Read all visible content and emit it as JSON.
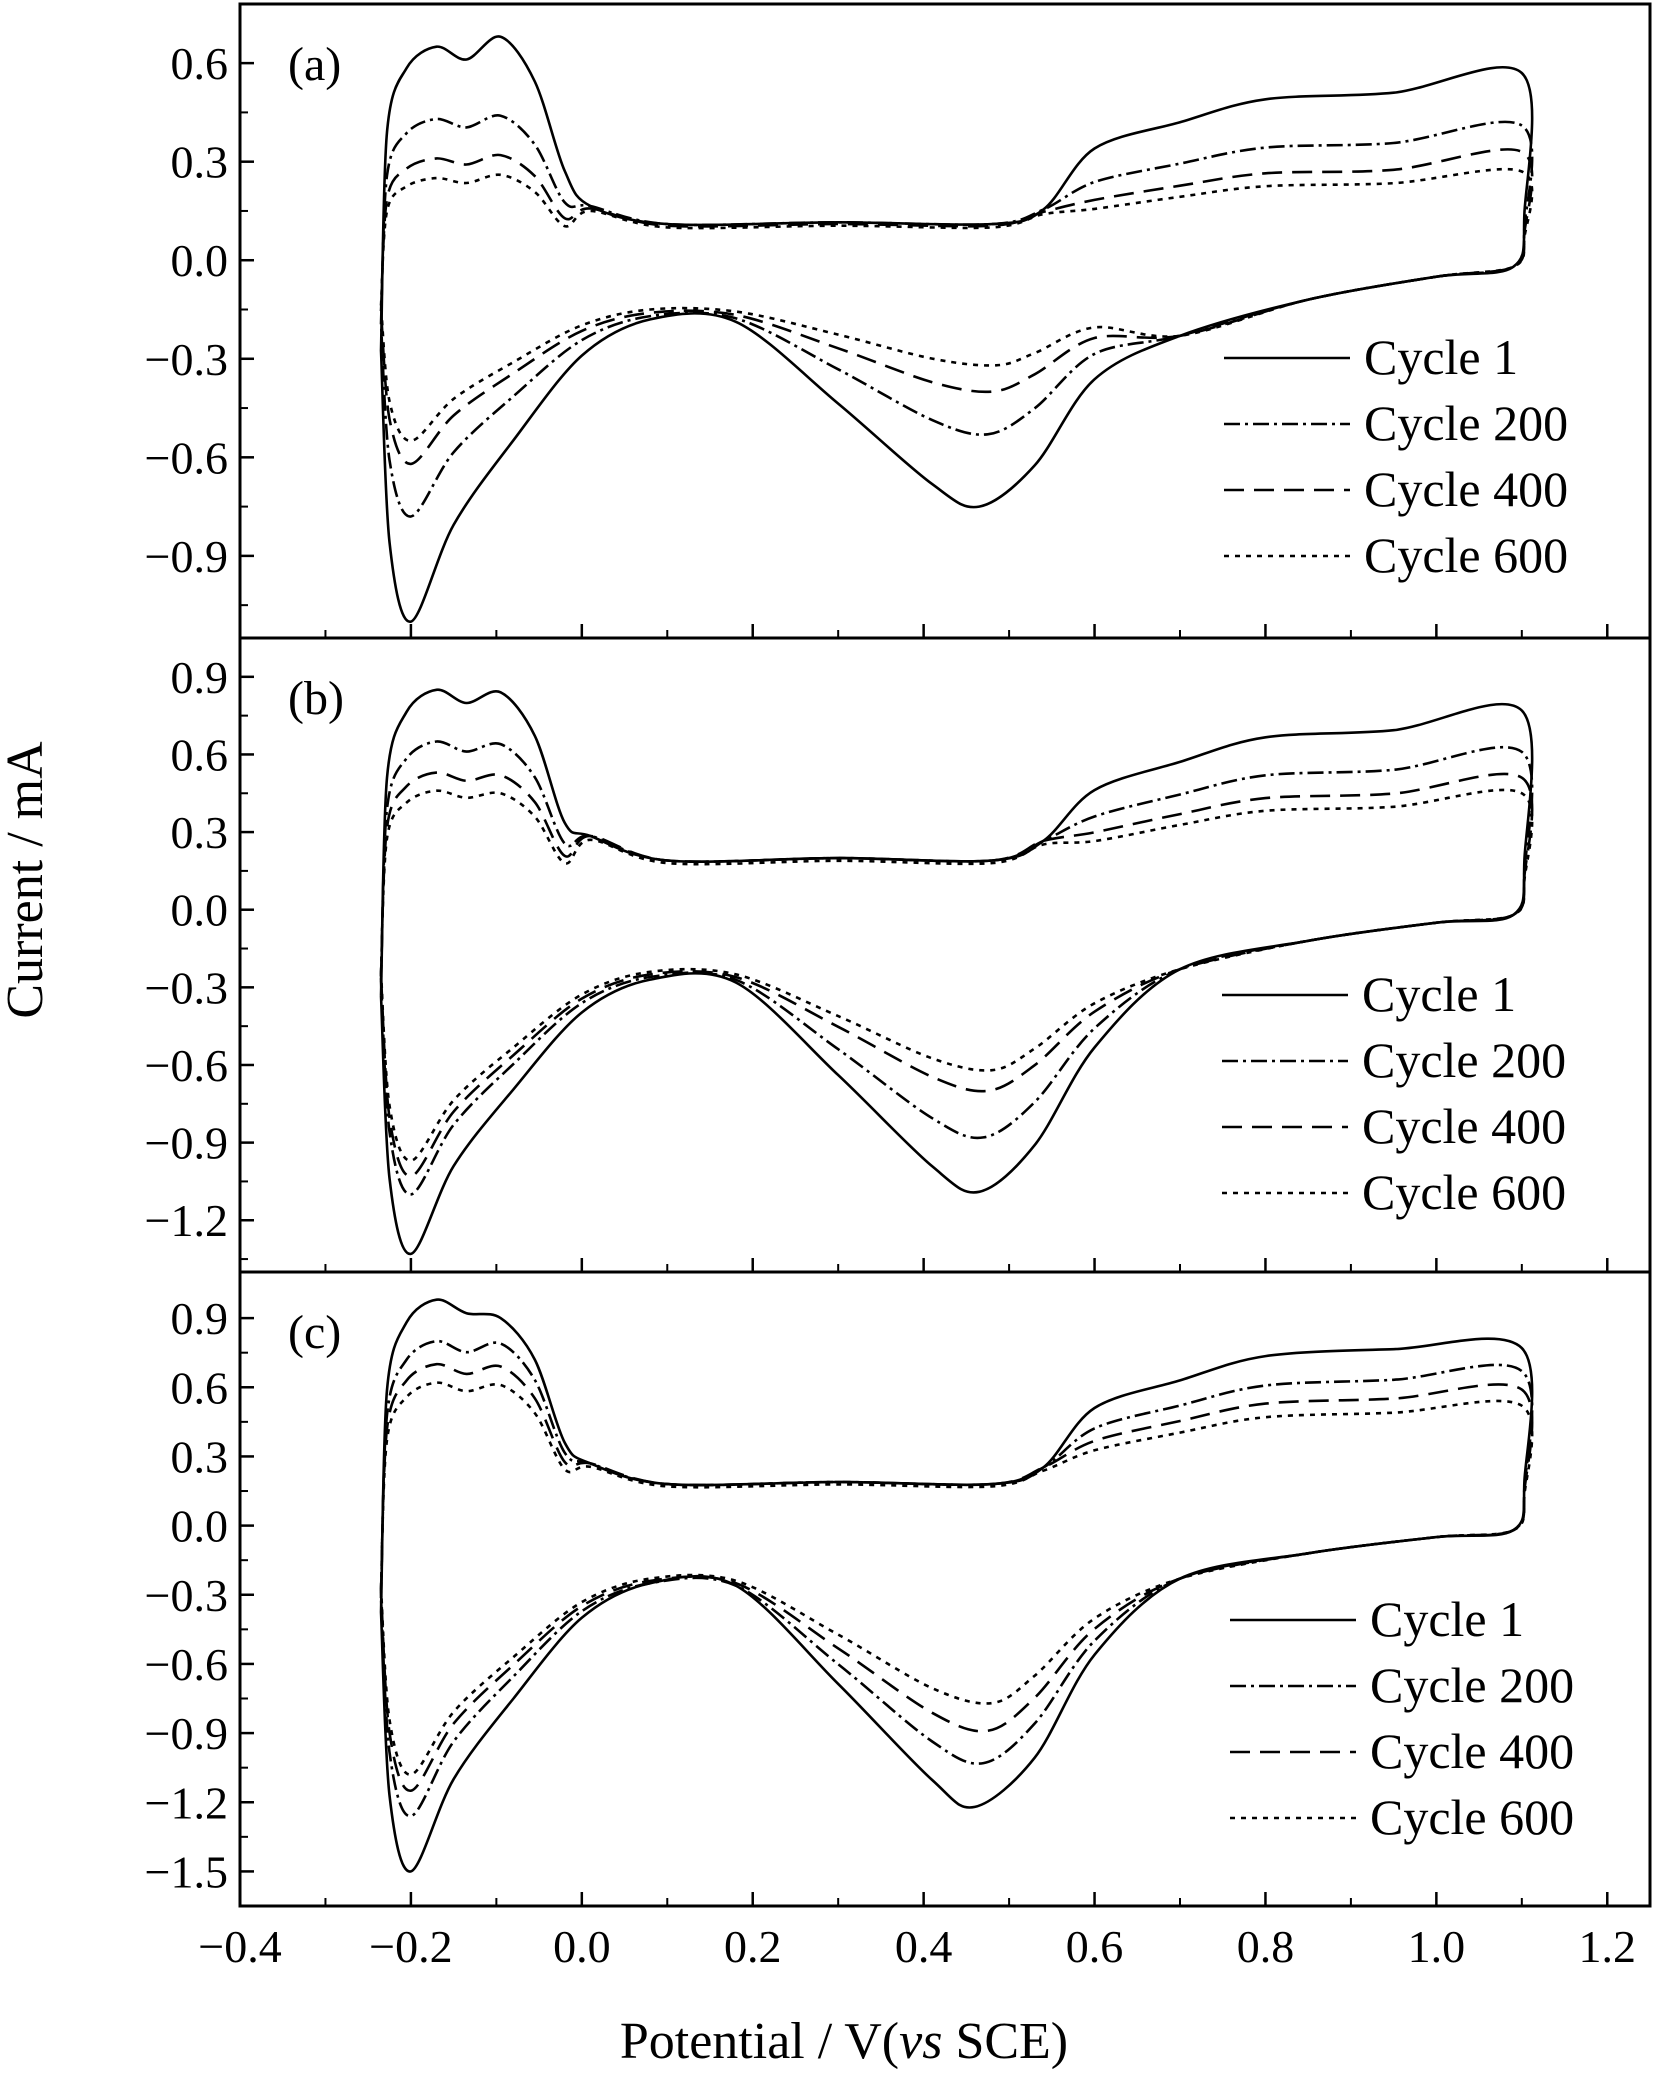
{
  "figure": {
    "ylabel": "Current / mA",
    "xlabel_parts": [
      "Potential / V(",
      "vs",
      " SCE)"
    ],
    "x_ticks": [
      "−0.4",
      "−0.2",
      "0.0",
      "0.2",
      "0.4",
      "0.6",
      "0.8",
      "1.0",
      "1.2"
    ]
  },
  "chart_data": [
    {
      "type": "line",
      "panel_label": "(a)",
      "xlim": [
        -0.4,
        1.25
      ],
      "ylim": [
        -1.15,
        0.78
      ],
      "y_ticks": [
        "0.6",
        "0.3",
        "0.0",
        "−0.3",
        "−0.6",
        "−0.9"
      ],
      "y_tick_values": [
        0.6,
        0.3,
        0.0,
        -0.3,
        -0.6,
        -0.9
      ],
      "legend_position": "right",
      "series": [
        {
          "name": "Cycle 1",
          "style": "solid",
          "anodic_peaks": [
            0.65,
            0.68
          ],
          "anodic_plateau": 0.11,
          "anodic_high": 0.5,
          "end_current": 0.57,
          "cathodic_valley_x": 0.465,
          "cathodic_valley": -0.75,
          "cathodic_floor": -0.18,
          "start_current": -1.1
        },
        {
          "name": "Cycle 200",
          "style": "dashdot",
          "anodic_peaks": [
            0.43,
            0.44
          ],
          "anodic_plateau": 0.11,
          "anodic_high": 0.35,
          "end_current": 0.41,
          "cathodic_valley_x": 0.475,
          "cathodic_valley": -0.53,
          "cathodic_floor": -0.17,
          "start_current": -0.78
        },
        {
          "name": "Cycle 400",
          "style": "dashed",
          "anodic_peaks": [
            0.31,
            0.32
          ],
          "anodic_plateau": 0.105,
          "anodic_high": 0.27,
          "end_current": 0.33,
          "cathodic_valley_x": 0.48,
          "cathodic_valley": -0.4,
          "cathodic_floor": -0.16,
          "start_current": -0.62
        },
        {
          "name": "Cycle 600",
          "style": "dotted",
          "anodic_peaks": [
            0.25,
            0.26
          ],
          "anodic_plateau": 0.1,
          "anodic_high": 0.23,
          "end_current": 0.27,
          "cathodic_valley_x": 0.485,
          "cathodic_valley": -0.32,
          "cathodic_floor": -0.15,
          "start_current": -0.55
        }
      ]
    },
    {
      "type": "line",
      "panel_label": "(b)",
      "xlim": [
        -0.4,
        1.25
      ],
      "ylim": [
        -1.4,
        1.05
      ],
      "y_ticks": [
        "0.9",
        "0.6",
        "0.3",
        "0.0",
        "−0.3",
        "−0.6",
        "−0.9",
        "−1.2"
      ],
      "y_tick_values": [
        0.9,
        0.6,
        0.3,
        0.0,
        -0.3,
        -0.6,
        -0.9,
        -1.2
      ],
      "legend_position": "right",
      "series": [
        {
          "name": "Cycle 1",
          "style": "solid",
          "anodic_peaks": [
            0.85,
            0.84
          ],
          "anodic_plateau": 0.19,
          "anodic_high": 0.68,
          "end_current": 0.77,
          "cathodic_valley_x": 0.465,
          "cathodic_valley": -1.09,
          "cathodic_floor": -0.27,
          "start_current": -1.33
        },
        {
          "name": "Cycle 200",
          "style": "dashdot",
          "anodic_peaks": [
            0.65,
            0.64
          ],
          "anodic_plateau": 0.19,
          "anodic_high": 0.53,
          "end_current": 0.61,
          "cathodic_valley_x": 0.47,
          "cathodic_valley": -0.88,
          "cathodic_floor": -0.26,
          "start_current": -1.1
        },
        {
          "name": "Cycle 400",
          "style": "dashed",
          "anodic_peaks": [
            0.53,
            0.52
          ],
          "anodic_plateau": 0.19,
          "anodic_high": 0.44,
          "end_current": 0.51,
          "cathodic_valley_x": 0.475,
          "cathodic_valley": -0.7,
          "cathodic_floor": -0.25,
          "start_current": -1.03
        },
        {
          "name": "Cycle 600",
          "style": "dotted",
          "anodic_peaks": [
            0.46,
            0.45
          ],
          "anodic_plateau": 0.18,
          "anodic_high": 0.39,
          "end_current": 0.45,
          "cathodic_valley_x": 0.48,
          "cathodic_valley": -0.62,
          "cathodic_floor": -0.24,
          "start_current": -0.97
        }
      ]
    },
    {
      "type": "line",
      "panel_label": "(c)",
      "xlim": [
        -0.4,
        1.25
      ],
      "ylim": [
        -1.65,
        1.1
      ],
      "y_ticks": [
        "0.9",
        "0.6",
        "0.3",
        "0.0",
        "−0.3",
        "−0.6",
        "−0.9",
        "−1.2",
        "−1.5"
      ],
      "y_tick_values": [
        0.9,
        0.6,
        0.3,
        0.0,
        -0.3,
        -0.6,
        -0.9,
        -1.2,
        -1.5
      ],
      "legend_position": "right",
      "series": [
        {
          "name": "Cycle 1",
          "style": "solid",
          "anodic_peaks": [
            0.98,
            0.9
          ],
          "anodic_plateau": 0.18,
          "anodic_high": 0.75,
          "end_current": 0.77,
          "cathodic_valley_x": 0.46,
          "cathodic_valley": -1.22,
          "cathodic_floor": -0.25,
          "start_current": -1.5
        },
        {
          "name": "Cycle 200",
          "style": "dashdot",
          "anodic_peaks": [
            0.8,
            0.79
          ],
          "anodic_plateau": 0.18,
          "anodic_high": 0.62,
          "end_current": 0.67,
          "cathodic_valley_x": 0.47,
          "cathodic_valley": -1.03,
          "cathodic_floor": -0.25,
          "start_current": -1.26
        },
        {
          "name": "Cycle 400",
          "style": "dashed",
          "anodic_peaks": [
            0.7,
            0.69
          ],
          "anodic_plateau": 0.18,
          "anodic_high": 0.54,
          "end_current": 0.59,
          "cathodic_valley_x": 0.475,
          "cathodic_valley": -0.89,
          "cathodic_floor": -0.24,
          "start_current": -1.15
        },
        {
          "name": "Cycle 600",
          "style": "dotted",
          "anodic_peaks": [
            0.62,
            0.61
          ],
          "anodic_plateau": 0.17,
          "anodic_high": 0.48,
          "end_current": 0.52,
          "cathodic_valley_x": 0.48,
          "cathodic_valley": -0.77,
          "cathodic_floor": -0.23,
          "start_current": -1.08
        }
      ]
    }
  ]
}
